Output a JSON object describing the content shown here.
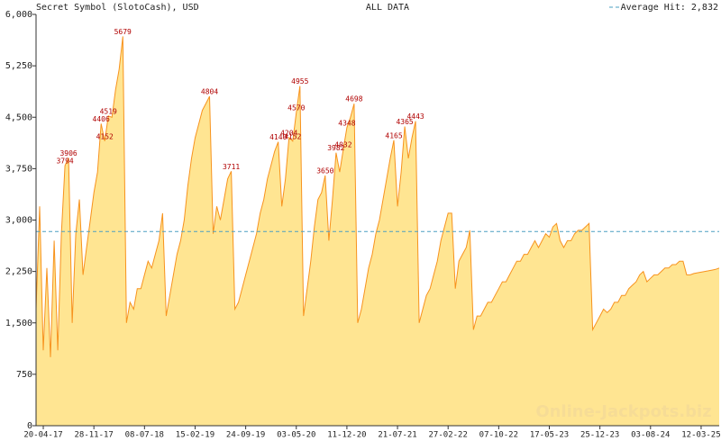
{
  "chart_data": {
    "type": "area",
    "title": "Secret Symbol (SlotoCash), USD",
    "subtitle": "ALL DATA",
    "watermark": "Online-Jackpots.biz",
    "color": "#f7931e",
    "fill_color": "#ffe592",
    "ylim": [
      0,
      6000
    ],
    "yticks": [
      0,
      750,
      {
        "value": 1500,
        "label": "1,500"
      },
      {
        "value": 2250,
        "label": "2,250"
      },
      {
        "value": 3000,
        "label": "3,000"
      },
      {
        "value": 3750,
        "label": "3,750"
      },
      {
        "value": 4500,
        "label": "4,500"
      },
      {
        "value": 5250,
        "label": "5,250"
      },
      {
        "value": 6000,
        "label": "6,000"
      }
    ],
    "average": {
      "value": 2832,
      "label": "Average Hit: 2,832",
      "color": "#4a9fc2"
    },
    "categories": [
      null,
      null,
      "20-04-17",
      null,
      null,
      null,
      null,
      null,
      null,
      null,
      null,
      null,
      null,
      null,
      null,
      null,
      "28-11-17",
      null,
      null,
      null,
      null,
      null,
      null,
      null,
      null,
      null,
      null,
      null,
      null,
      null,
      "08-07-18",
      null,
      null,
      null,
      null,
      null,
      null,
      null,
      null,
      null,
      null,
      null,
      null,
      null,
      "15-02-19",
      null,
      null,
      null,
      null,
      null,
      null,
      null,
      null,
      null,
      null,
      null,
      null,
      null,
      "24-09-19",
      null,
      null,
      null,
      null,
      null,
      null,
      null,
      null,
      null,
      null,
      null,
      null,
      null,
      "03-05-20",
      null,
      null,
      null,
      null,
      null,
      null,
      null,
      null,
      null,
      null,
      null,
      null,
      null,
      "11-12-20",
      null,
      null,
      null,
      null,
      null,
      null,
      null,
      null,
      null,
      null,
      null,
      null,
      null,
      "21-07-21",
      null,
      null,
      null,
      null,
      null,
      null,
      null,
      null,
      null,
      null,
      null,
      null,
      null,
      "27-02-22",
      null,
      null,
      null,
      null,
      null,
      null,
      null,
      null,
      null,
      null,
      null,
      null,
      null,
      "07-10-22",
      null,
      null,
      null,
      null,
      null,
      null,
      null,
      null,
      null,
      null,
      null,
      null,
      null,
      "17-05-23",
      null,
      null,
      null,
      null,
      null,
      null,
      null,
      null,
      null,
      null,
      null,
      null,
      null,
      "25-12-23",
      null,
      null,
      null,
      null,
      null,
      null,
      null,
      null,
      null,
      null,
      null,
      null,
      null,
      "03-08-24",
      null,
      null,
      null,
      null,
      null,
      null,
      null,
      null,
      null,
      null,
      null,
      null,
      null,
      "12-03-25",
      null,
      null,
      null,
      null,
      null
    ],
    "values": [
      1700,
      3200,
      1100,
      2300,
      1000,
      2700,
      1100,
      2800,
      3794,
      3906,
      1500,
      2800,
      3300,
      2200,
      2600,
      3000,
      3400,
      3700,
      4406,
      4152,
      4519,
      4500,
      4900,
      5200,
      5679,
      1500,
      1800,
      1700,
      2000,
      2000,
      2200,
      2400,
      2300,
      2500,
      2700,
      3100,
      1600,
      1900,
      2200,
      2500,
      2700,
      3000,
      3500,
      3900,
      4200,
      4400,
      4600,
      4700,
      4804,
      2800,
      3200,
      3000,
      3300,
      3600,
      3711,
      1700,
      1800,
      2000,
      2200,
      2400,
      2600,
      2800,
      3100,
      3300,
      3600,
      3800,
      4000,
      4140,
      3200,
      3600,
      4204,
      4152,
      4570,
      4955,
      1600,
      2000,
      2400,
      2900,
      3300,
      3400,
      3650,
      2700,
      3300,
      3982,
      3700,
      4032,
      4348,
      4500,
      4698,
      1500,
      1700,
      2000,
      2300,
      2500,
      2800,
      3000,
      3300,
      3600,
      3900,
      4165,
      3200,
      3700,
      4365,
      3900,
      4200,
      4443,
      1500,
      1700,
      1900,
      2000,
      2200,
      2400,
      2700,
      2900,
      3100,
      3100,
      2000,
      2400,
      2500,
      2600,
      2850,
      1400,
      1600,
      1600,
      1700,
      1800,
      1800,
      1900,
      2000,
      2100,
      2100,
      2200,
      2300,
      2400,
      2400,
      2500,
      2500,
      2600,
      2700,
      2600,
      2700,
      2800,
      2750,
      2900,
      2950,
      2700,
      2600,
      2700,
      2700,
      2800,
      2850,
      2850,
      2900,
      2950,
      1400,
      1500,
      1600,
      1700,
      1650,
      1700,
      1800,
      1800,
      1900,
      1900,
      2000,
      2050,
      2100,
      2200,
      2250,
      2100,
      2150,
      2200,
      2200,
      2250,
      2300,
      2300,
      2350,
      2350,
      2400,
      2400,
      2200,
      2200,
      2220,
      2230,
      2240,
      2250,
      2260,
      2270,
      2280,
      2300
    ],
    "peak_labels": [
      null,
      null,
      null,
      null,
      null,
      null,
      null,
      null,
      3794,
      3906,
      null,
      null,
      null,
      null,
      null,
      null,
      null,
      null,
      4406,
      4152,
      4519,
      null,
      null,
      null,
      5679,
      null,
      null,
      null,
      null,
      null,
      null,
      null,
      null,
      null,
      null,
      null,
      null,
      null,
      null,
      null,
      null,
      null,
      null,
      null,
      null,
      null,
      null,
      null,
      4804,
      null,
      null,
      null,
      null,
      null,
      3711,
      null,
      null,
      null,
      null,
      null,
      null,
      null,
      null,
      null,
      null,
      null,
      null,
      4140,
      null,
      null,
      4204,
      4152,
      4570,
      4955,
      null,
      null,
      null,
      null,
      null,
      null,
      3650,
      null,
      null,
      3982,
      null,
      4032,
      4348,
      null,
      4698,
      null,
      null,
      null,
      null,
      null,
      null,
      null,
      null,
      null,
      null,
      4165,
      null,
      null,
      4365,
      null,
      null,
      4443,
      null,
      null,
      null,
      null,
      null,
      null,
      null,
      null,
      null,
      null,
      null,
      null,
      null,
      null,
      null,
      null,
      null,
      null,
      null,
      null,
      null,
      null,
      null,
      null,
      null,
      null,
      null,
      null,
      null,
      null,
      null,
      null,
      null,
      null,
      null,
      null,
      null,
      null,
      null,
      null,
      null,
      null,
      null,
      null,
      null,
      null,
      null,
      null,
      null,
      null,
      null,
      null,
      null,
      null,
      null,
      null,
      null,
      null,
      null,
      null,
      null,
      null,
      null,
      null,
      null,
      null,
      null,
      null,
      null,
      null,
      null,
      null,
      null,
      null,
      null,
      null,
      null,
      null,
      null,
      null,
      null,
      null,
      null,
      null
    ]
  }
}
